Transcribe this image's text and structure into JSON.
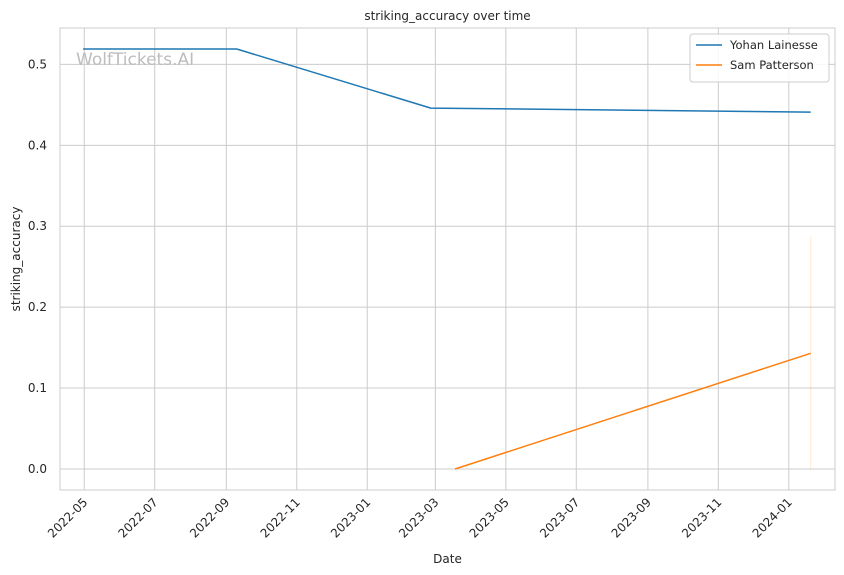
{
  "chart_data": {
    "type": "line",
    "title": "striking_accuracy over time",
    "xlabel": "Date",
    "ylabel": "striking_accuracy",
    "watermark": "WolfTickets.AI",
    "x_ticks": [
      "2022-05",
      "2022-07",
      "2022-09",
      "2022-11",
      "2023-01",
      "2023-03",
      "2023-05",
      "2023-07",
      "2023-09",
      "2023-11",
      "2024-01"
    ],
    "y_ticks": [
      "0.0",
      "0.1",
      "0.2",
      "0.3",
      "0.4",
      "0.5"
    ],
    "xlim": [
      "2022-04-10",
      "2024-02-10"
    ],
    "ylim": [
      -0.026,
      0.545
    ],
    "grid": true,
    "legend_position": "top-right",
    "series": [
      {
        "name": "Yohan Lainesse",
        "color": "#1f77b4",
        "points": [
          {
            "x": "2022-04-30",
            "y": 0.519
          },
          {
            "x": "2022-09-10",
            "y": 0.519
          },
          {
            "x": "2023-02-25",
            "y": 0.446
          },
          {
            "x": "2024-01-20",
            "y": 0.441
          }
        ]
      },
      {
        "name": "Sam Patterson",
        "color": "#ff7f0e",
        "points": [
          {
            "x": "2023-03-18",
            "y": 0.0
          },
          {
            "x": "2024-01-20",
            "y": 0.143
          }
        ]
      }
    ],
    "faint_band": {
      "x": "2024-01-20",
      "y_range": [
        0.0,
        0.287
      ],
      "color": "#ff7f0e"
    }
  }
}
